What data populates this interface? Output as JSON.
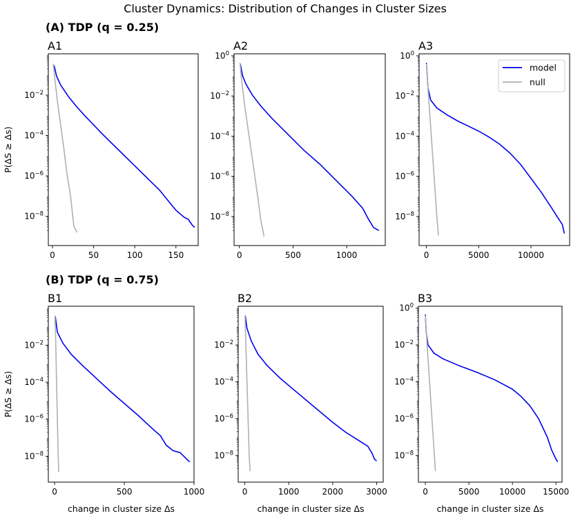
{
  "figure": {
    "title": "Cluster Dynamics: Distribution of Changes in Cluster Sizes",
    "row_titles": [
      "(A) TDP (q = 0.25)",
      "(B) TDP (q = 0.75)"
    ],
    "ylabel": "P(ΔS ≥ Δs)",
    "xlabel": "change in cluster size Δs",
    "legend": [
      "model",
      "null"
    ]
  },
  "colors": {
    "model": "#0000ee",
    "null": "#b0b0b0"
  },
  "chart_data": [
    {
      "panel": "A1",
      "type": "line",
      "yscale": "log",
      "xlim": [
        -5,
        177
      ],
      "ylim_exp": [
        -9.45,
        0.05
      ],
      "xticks": [
        0,
        50,
        100,
        150
      ],
      "yticks_exp": [
        -2,
        -4,
        -6,
        -8
      ],
      "series": [
        {
          "name": "model",
          "points": [
            [
              2,
              -0.52
            ],
            [
              5,
              -1.05
            ],
            [
              10,
              -1.5
            ],
            [
              20,
              -2.1
            ],
            [
              30,
              -2.6
            ],
            [
              40,
              -3.05
            ],
            [
              60,
              -3.9
            ],
            [
              80,
              -4.7
            ],
            [
              100,
              -5.5
            ],
            [
              120,
              -6.3
            ],
            [
              130,
              -6.7
            ],
            [
              140,
              -7.2
            ],
            [
              150,
              -7.7
            ],
            [
              160,
              -8.05
            ],
            [
              165,
              -8.15
            ],
            [
              170,
              -8.45
            ],
            [
              173,
              -8.55
            ]
          ]
        },
        {
          "name": "null",
          "points": [
            [
              1,
              -0.45
            ],
            [
              3,
              -1.2
            ],
            [
              6,
              -2.3
            ],
            [
              10,
              -3.5
            ],
            [
              14,
              -4.7
            ],
            [
              18,
              -6.0
            ],
            [
              22,
              -7.0
            ],
            [
              26,
              -8.5
            ],
            [
              30,
              -8.8
            ]
          ]
        }
      ]
    },
    {
      "panel": "A2",
      "type": "line",
      "yscale": "log",
      "xlim": [
        -50,
        1360
      ],
      "ylim_exp": [
        -9.45,
        0.1
      ],
      "xticks": [
        0,
        500,
        1000
      ],
      "yticks_exp": [
        0,
        -2,
        -4,
        -6,
        -8
      ],
      "series": [
        {
          "name": "model",
          "points": [
            [
              8,
              -0.4
            ],
            [
              30,
              -1.0
            ],
            [
              60,
              -1.4
            ],
            [
              120,
              -1.95
            ],
            [
              200,
              -2.5
            ],
            [
              300,
              -3.1
            ],
            [
              450,
              -3.9
            ],
            [
              600,
              -4.7
            ],
            [
              750,
              -5.4
            ],
            [
              900,
              -6.2
            ],
            [
              1050,
              -7.0
            ],
            [
              1150,
              -7.6
            ],
            [
              1200,
              -8.1
            ],
            [
              1250,
              -8.55
            ],
            [
              1300,
              -8.7
            ]
          ]
        },
        {
          "name": "null",
          "points": [
            [
              5,
              -0.35
            ],
            [
              20,
              -1.2
            ],
            [
              50,
              -2.5
            ],
            [
              90,
              -4.0
            ],
            [
              130,
              -5.5
            ],
            [
              170,
              -7.0
            ],
            [
              200,
              -8.2
            ],
            [
              230,
              -9.0
            ]
          ]
        }
      ]
    },
    {
      "panel": "A3",
      "type": "line",
      "yscale": "log",
      "xlim": [
        -700,
        13700
      ],
      "ylim_exp": [
        -9.45,
        0.1
      ],
      "xticks": [
        0,
        5000,
        10000
      ],
      "yticks_exp": [
        0,
        -2,
        -4,
        -6,
        -8
      ],
      "series": [
        {
          "name": "model",
          "points": [
            [
              0,
              -0.35
            ],
            [
              150,
              -1.6
            ],
            [
              400,
              -2.2
            ],
            [
              1000,
              -2.6
            ],
            [
              2000,
              -2.95
            ],
            [
              3000,
              -3.25
            ],
            [
              4000,
              -3.5
            ],
            [
              5000,
              -3.75
            ],
            [
              6000,
              -4.05
            ],
            [
              7000,
              -4.4
            ],
            [
              8000,
              -4.85
            ],
            [
              9000,
              -5.4
            ],
            [
              10000,
              -6.1
            ],
            [
              11000,
              -6.8
            ],
            [
              12000,
              -7.6
            ],
            [
              12500,
              -8.0
            ],
            [
              13000,
              -8.4
            ],
            [
              13200,
              -8.85
            ]
          ]
        },
        {
          "name": "null",
          "points": [
            [
              0,
              -0.4
            ],
            [
              200,
              -2.0
            ],
            [
              400,
              -3.5
            ],
            [
              600,
              -5.0
            ],
            [
              800,
              -6.5
            ],
            [
              1000,
              -8.0
            ],
            [
              1150,
              -8.95
            ]
          ]
        }
      ]
    },
    {
      "panel": "B1",
      "type": "line",
      "yscale": "log",
      "xlim": [
        -45,
        1000
      ],
      "ylim_exp": [
        -9.4,
        0.1
      ],
      "xticks": [
        0,
        500,
        1000
      ],
      "yticks_exp": [
        -2,
        -4,
        -6,
        -8
      ],
      "series": [
        {
          "name": "model",
          "points": [
            [
              5,
              -0.45
            ],
            [
              20,
              -1.3
            ],
            [
              60,
              -1.9
            ],
            [
              120,
              -2.5
            ],
            [
              200,
              -3.1
            ],
            [
              300,
              -3.8
            ],
            [
              400,
              -4.5
            ],
            [
              500,
              -5.15
            ],
            [
              600,
              -5.8
            ],
            [
              700,
              -6.5
            ],
            [
              760,
              -6.9
            ],
            [
              800,
              -7.4
            ],
            [
              850,
              -7.7
            ],
            [
              900,
              -7.8
            ],
            [
              960,
              -8.25
            ],
            [
              970,
              -8.3
            ]
          ]
        },
        {
          "name": "null",
          "points": [
            [
              3,
              -0.4
            ],
            [
              8,
              -1.8
            ],
            [
              14,
              -4.0
            ],
            [
              20,
              -6.0
            ],
            [
              26,
              -8.0
            ],
            [
              30,
              -8.85
            ]
          ]
        }
      ]
    },
    {
      "panel": "B2",
      "type": "line",
      "yscale": "log",
      "xlim": [
        -150,
        3150
      ],
      "ylim_exp": [
        -9.45,
        0.1
      ],
      "xticks": [
        0,
        1000,
        2000,
        3000
      ],
      "yticks_exp": [
        -2,
        -4,
        -6,
        -8
      ],
      "series": [
        {
          "name": "model",
          "points": [
            [
              10,
              -0.4
            ],
            [
              50,
              -1.1
            ],
            [
              150,
              -1.8
            ],
            [
              300,
              -2.5
            ],
            [
              500,
              -3.1
            ],
            [
              800,
              -3.8
            ],
            [
              1100,
              -4.4
            ],
            [
              1400,
              -5.0
            ],
            [
              1700,
              -5.6
            ],
            [
              2000,
              -6.2
            ],
            [
              2300,
              -6.75
            ],
            [
              2600,
              -7.2
            ],
            [
              2800,
              -7.5
            ],
            [
              2900,
              -7.9
            ],
            [
              2950,
              -8.2
            ],
            [
              3000,
              -8.3
            ]
          ]
        },
        {
          "name": "null",
          "points": [
            [
              5,
              -0.4
            ],
            [
              25,
              -2.0
            ],
            [
              50,
              -4.0
            ],
            [
              75,
              -6.0
            ],
            [
              100,
              -8.0
            ],
            [
              120,
              -8.85
            ]
          ]
        }
      ]
    },
    {
      "panel": "B3",
      "type": "line",
      "yscale": "log",
      "xlim": [
        -800,
        15700
      ],
      "ylim_exp": [
        -9.45,
        0.1
      ],
      "xticks": [
        0,
        5000,
        10000,
        15000
      ],
      "yticks_exp": [
        0,
        -2,
        -4,
        -6,
        -8
      ],
      "series": [
        {
          "name": "model",
          "points": [
            [
              0,
              -0.35
            ],
            [
              100,
              -1.3
            ],
            [
              300,
              -2.0
            ],
            [
              1000,
              -2.45
            ],
            [
              2000,
              -2.75
            ],
            [
              4000,
              -3.15
            ],
            [
              6000,
              -3.5
            ],
            [
              8000,
              -3.9
            ],
            [
              10000,
              -4.4
            ],
            [
              11000,
              -4.8
            ],
            [
              12000,
              -5.3
            ],
            [
              13000,
              -6.0
            ],
            [
              14000,
              -7.0
            ],
            [
              14500,
              -7.7
            ],
            [
              15000,
              -8.2
            ],
            [
              15200,
              -8.35
            ]
          ]
        },
        {
          "name": "null",
          "points": [
            [
              0,
              -0.4
            ],
            [
              200,
              -2.0
            ],
            [
              450,
              -3.8
            ],
            [
              700,
              -5.6
            ],
            [
              950,
              -7.4
            ],
            [
              1150,
              -8.85
            ]
          ]
        }
      ]
    }
  ]
}
